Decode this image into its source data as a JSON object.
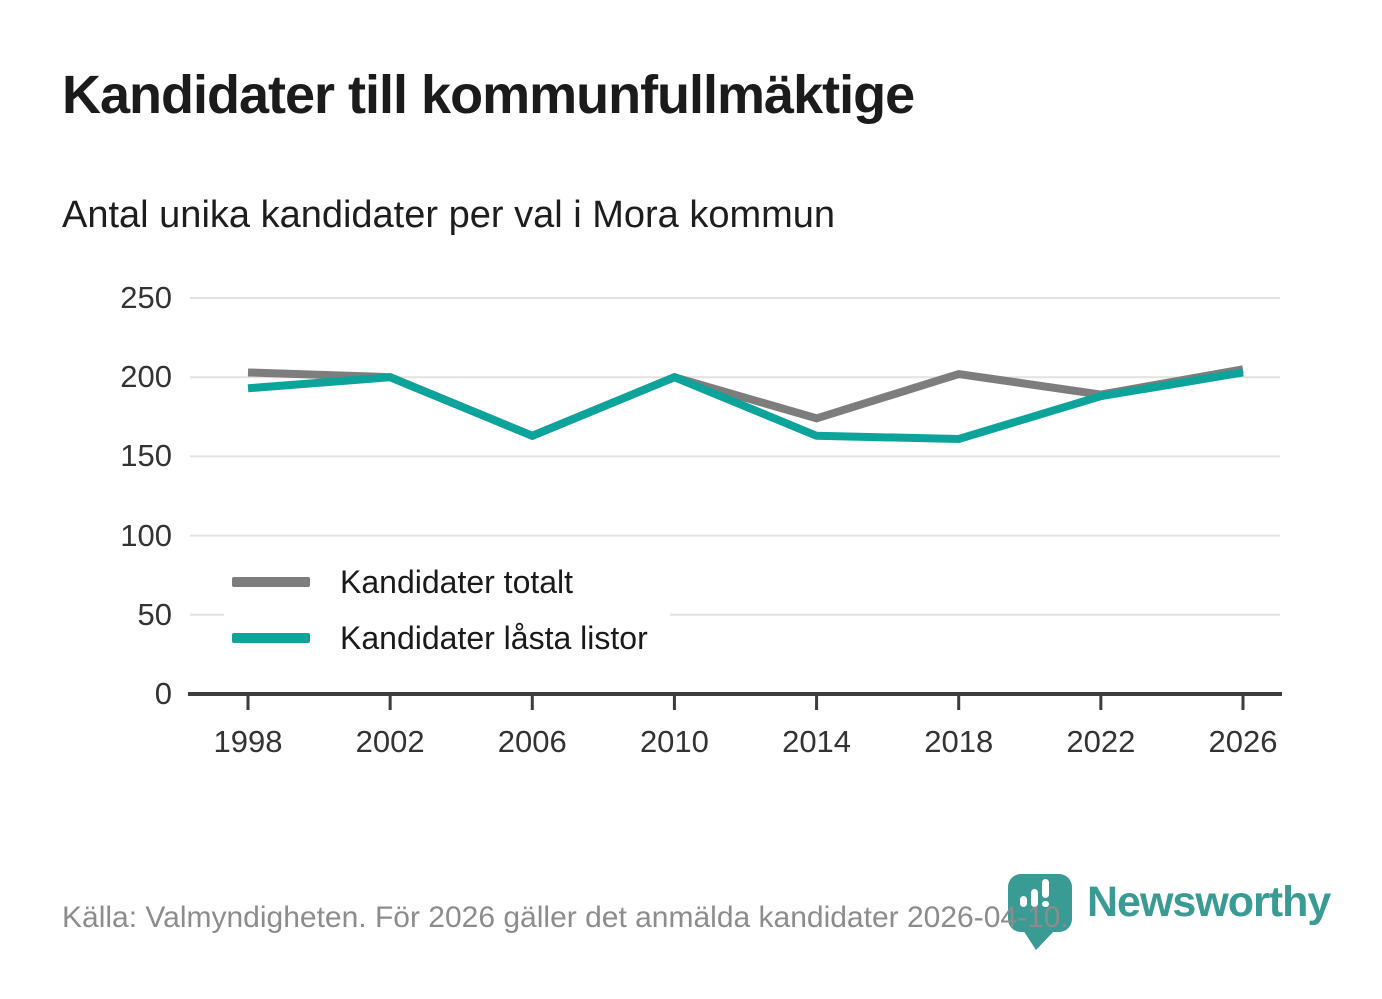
{
  "chart_data": {
    "type": "line",
    "title": "Kandidater till kommunfullmäktige",
    "subtitle": "Antal unika kandidater per val i Mora kommun",
    "x": [
      1998,
      2002,
      2006,
      2010,
      2014,
      2018,
      2022,
      2026
    ],
    "series": [
      {
        "name": "Kandidater totalt",
        "color": "#7d7d7d",
        "values": [
          203,
          200,
          163,
          200,
          174,
          202,
          189,
          205
        ]
      },
      {
        "name": "Kandidater låsta listor",
        "color": "#0ca39b",
        "values": [
          193,
          200,
          163,
          200,
          163,
          161,
          188,
          203
        ]
      }
    ],
    "xlabel": "",
    "ylabel": "",
    "ylim": [
      0,
      250
    ],
    "y_ticks": [
      0,
      50,
      100,
      150,
      200,
      250
    ],
    "grid": "horizontal",
    "legend_position": "inside-left-bottom"
  },
  "footer": {
    "source": "Källa: Valmyndigheten. För 2026 gäller det anmälda kandidater 2026-04-10."
  },
  "logo": {
    "brand": "Newsworthy",
    "icon": "newsworthy-speech-bubble-bar-chart-icon",
    "color": "#3a9a94"
  },
  "colors": {
    "grid": "#e2e2e2",
    "axis": "#3d3d3d",
    "footer_text": "#8c8c8c",
    "accent": "#0ca39b"
  }
}
